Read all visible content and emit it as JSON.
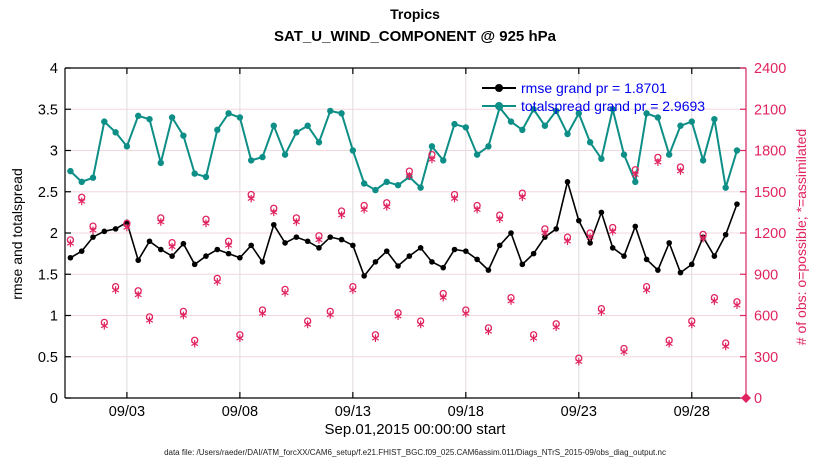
{
  "figure": {
    "title": "Tropics",
    "subtitle": "SAT_U_WIND_COMPONENT @ 925 hPa",
    "xlabel": "Sep.01,2015 00:00:00 start",
    "ylabel_left": "rmse and totalspread",
    "ylabel_right": "# of obs: o=possible; *=assimilated",
    "footer": "data file: /Users/raeder/DAI/ATM_forcXX/CAM6_setup/f.e21.FHIST_BGC.f09_025.CAM6assim.011/Diags_NTrS_2015-09/obs_diag_output.nc"
  },
  "legend": {
    "entries": [
      {
        "series": "rmse",
        "label": "rmse grand pr = 1.8701"
      },
      {
        "series": "totalspread",
        "label": "totalspread grand pr = 2.9693"
      }
    ]
  },
  "colors": {
    "rmse": "#000000",
    "totalspread": "#0d8e86",
    "obs": "#e0245f",
    "legend_text": "#0000ee",
    "grid_h": "#f3d7dd",
    "grid_v": "#e2dadc",
    "axis": "#000000"
  },
  "chart_data": {
    "type": "line",
    "title": "Tropics",
    "subtitle": "SAT_U_WIND_COMPONENT @ 925 hPa",
    "x_start": "2015-08-31 12:00",
    "x_step_hours": 12,
    "x_axis": {
      "label": "Sep.01,2015 00:00:00 start",
      "tick_labels": [
        "09/03",
        "09/08",
        "09/13",
        "09/18",
        "09/23",
        "09/28"
      ],
      "tick_day_offsets": [
        2,
        7,
        12,
        17,
        22,
        27
      ],
      "range_days": [
        -0.74,
        29.4
      ]
    },
    "y_left": {
      "label": "rmse and totalspread",
      "min": 0,
      "max": 4,
      "ticks": [
        "0",
        "0.5",
        "1",
        "1.5",
        "2",
        "2.5",
        "3",
        "3.5",
        "4"
      ]
    },
    "y_right": {
      "label": "# of obs: o=possible; *=assimilated",
      "min": 0,
      "max": 2400,
      "ticks": [
        "0",
        "300",
        "600",
        "900",
        "1200",
        "1500",
        "1800",
        "2100",
        "2400"
      ]
    },
    "series": [
      {
        "name": "rmse",
        "axis": "left",
        "marker": "filled-circle",
        "grand_pr": 1.8701,
        "values": [
          1.7,
          1.78,
          1.95,
          2.02,
          2.05,
          2.13,
          1.67,
          1.9,
          1.8,
          1.72,
          1.87,
          1.62,
          1.72,
          1.8,
          1.75,
          1.7,
          1.85,
          1.65,
          2.1,
          1.88,
          1.95,
          1.9,
          1.82,
          1.95,
          1.92,
          1.85,
          1.48,
          1.65,
          1.78,
          1.6,
          1.72,
          1.82,
          1.65,
          1.58,
          1.8,
          1.78,
          1.68,
          1.55,
          1.85,
          2.0,
          1.62,
          1.75,
          1.95,
          2.05,
          2.62,
          2.15,
          1.88,
          2.25,
          1.82,
          1.72,
          2.08,
          1.68,
          1.55,
          1.88,
          1.52,
          1.62,
          1.95,
          1.72,
          1.98,
          2.35
        ]
      },
      {
        "name": "totalspread",
        "axis": "left",
        "marker": "filled-circle",
        "grand_pr": 2.9693,
        "values": [
          2.75,
          2.62,
          2.67,
          3.35,
          3.22,
          3.05,
          3.42,
          3.38,
          2.85,
          3.4,
          3.18,
          2.72,
          2.68,
          3.25,
          3.45,
          3.4,
          2.88,
          2.92,
          3.3,
          2.95,
          3.22,
          3.3,
          3.1,
          3.48,
          3.45,
          3.0,
          2.6,
          2.52,
          2.62,
          2.58,
          2.68,
          2.55,
          3.05,
          2.88,
          3.32,
          3.28,
          2.95,
          3.05,
          3.52,
          3.35,
          3.25,
          3.5,
          3.3,
          3.48,
          3.2,
          3.45,
          3.1,
          2.9,
          3.5,
          2.95,
          2.62,
          3.45,
          3.4,
          2.95,
          3.3,
          3.35,
          2.88,
          3.38,
          2.55,
          3.0
        ]
      },
      {
        "name": "obs_possible",
        "axis": "right",
        "marker": "open-circle",
        "values": [
          1150,
          1460,
          1250,
          550,
          810,
          1270,
          780,
          590,
          1310,
          1130,
          630,
          420,
          1300,
          870,
          1140,
          460,
          1480,
          640,
          1380,
          790,
          1310,
          560,
          1180,
          630,
          1360,
          810,
          1400,
          460,
          1420,
          620,
          1650,
          560,
          1770,
          760,
          1480,
          640,
          1400,
          510,
          1330,
          730,
          1490,
          460,
          1230,
          540,
          1170,
          290,
          1200,
          650,
          1240,
          360,
          1660,
          810,
          1750,
          420,
          1680,
          560,
          1190,
          730,
          400,
          700
        ]
      },
      {
        "name": "obs_assimilated",
        "axis": "right",
        "marker": "asterisk",
        "values": [
          1125,
          1430,
          1220,
          525,
          785,
          1240,
          750,
          565,
          1280,
          1100,
          600,
          395,
          1270,
          845,
          1110,
          435,
          1450,
          615,
          1350,
          765,
          1280,
          535,
          1150,
          605,
          1330,
          785,
          1370,
          435,
          1390,
          595,
          1615,
          535,
          1735,
          730,
          1450,
          615,
          1370,
          485,
          1300,
          705,
          1460,
          435,
          1200,
          515,
          1140,
          265,
          1170,
          625,
          1210,
          335,
          1625,
          785,
          1715,
          395,
          1650,
          535,
          1160,
          705,
          375,
          675
        ]
      }
    ],
    "end_marker": {
      "t_days": 29.4,
      "count": 0,
      "marker": "filled-diamond"
    }
  }
}
